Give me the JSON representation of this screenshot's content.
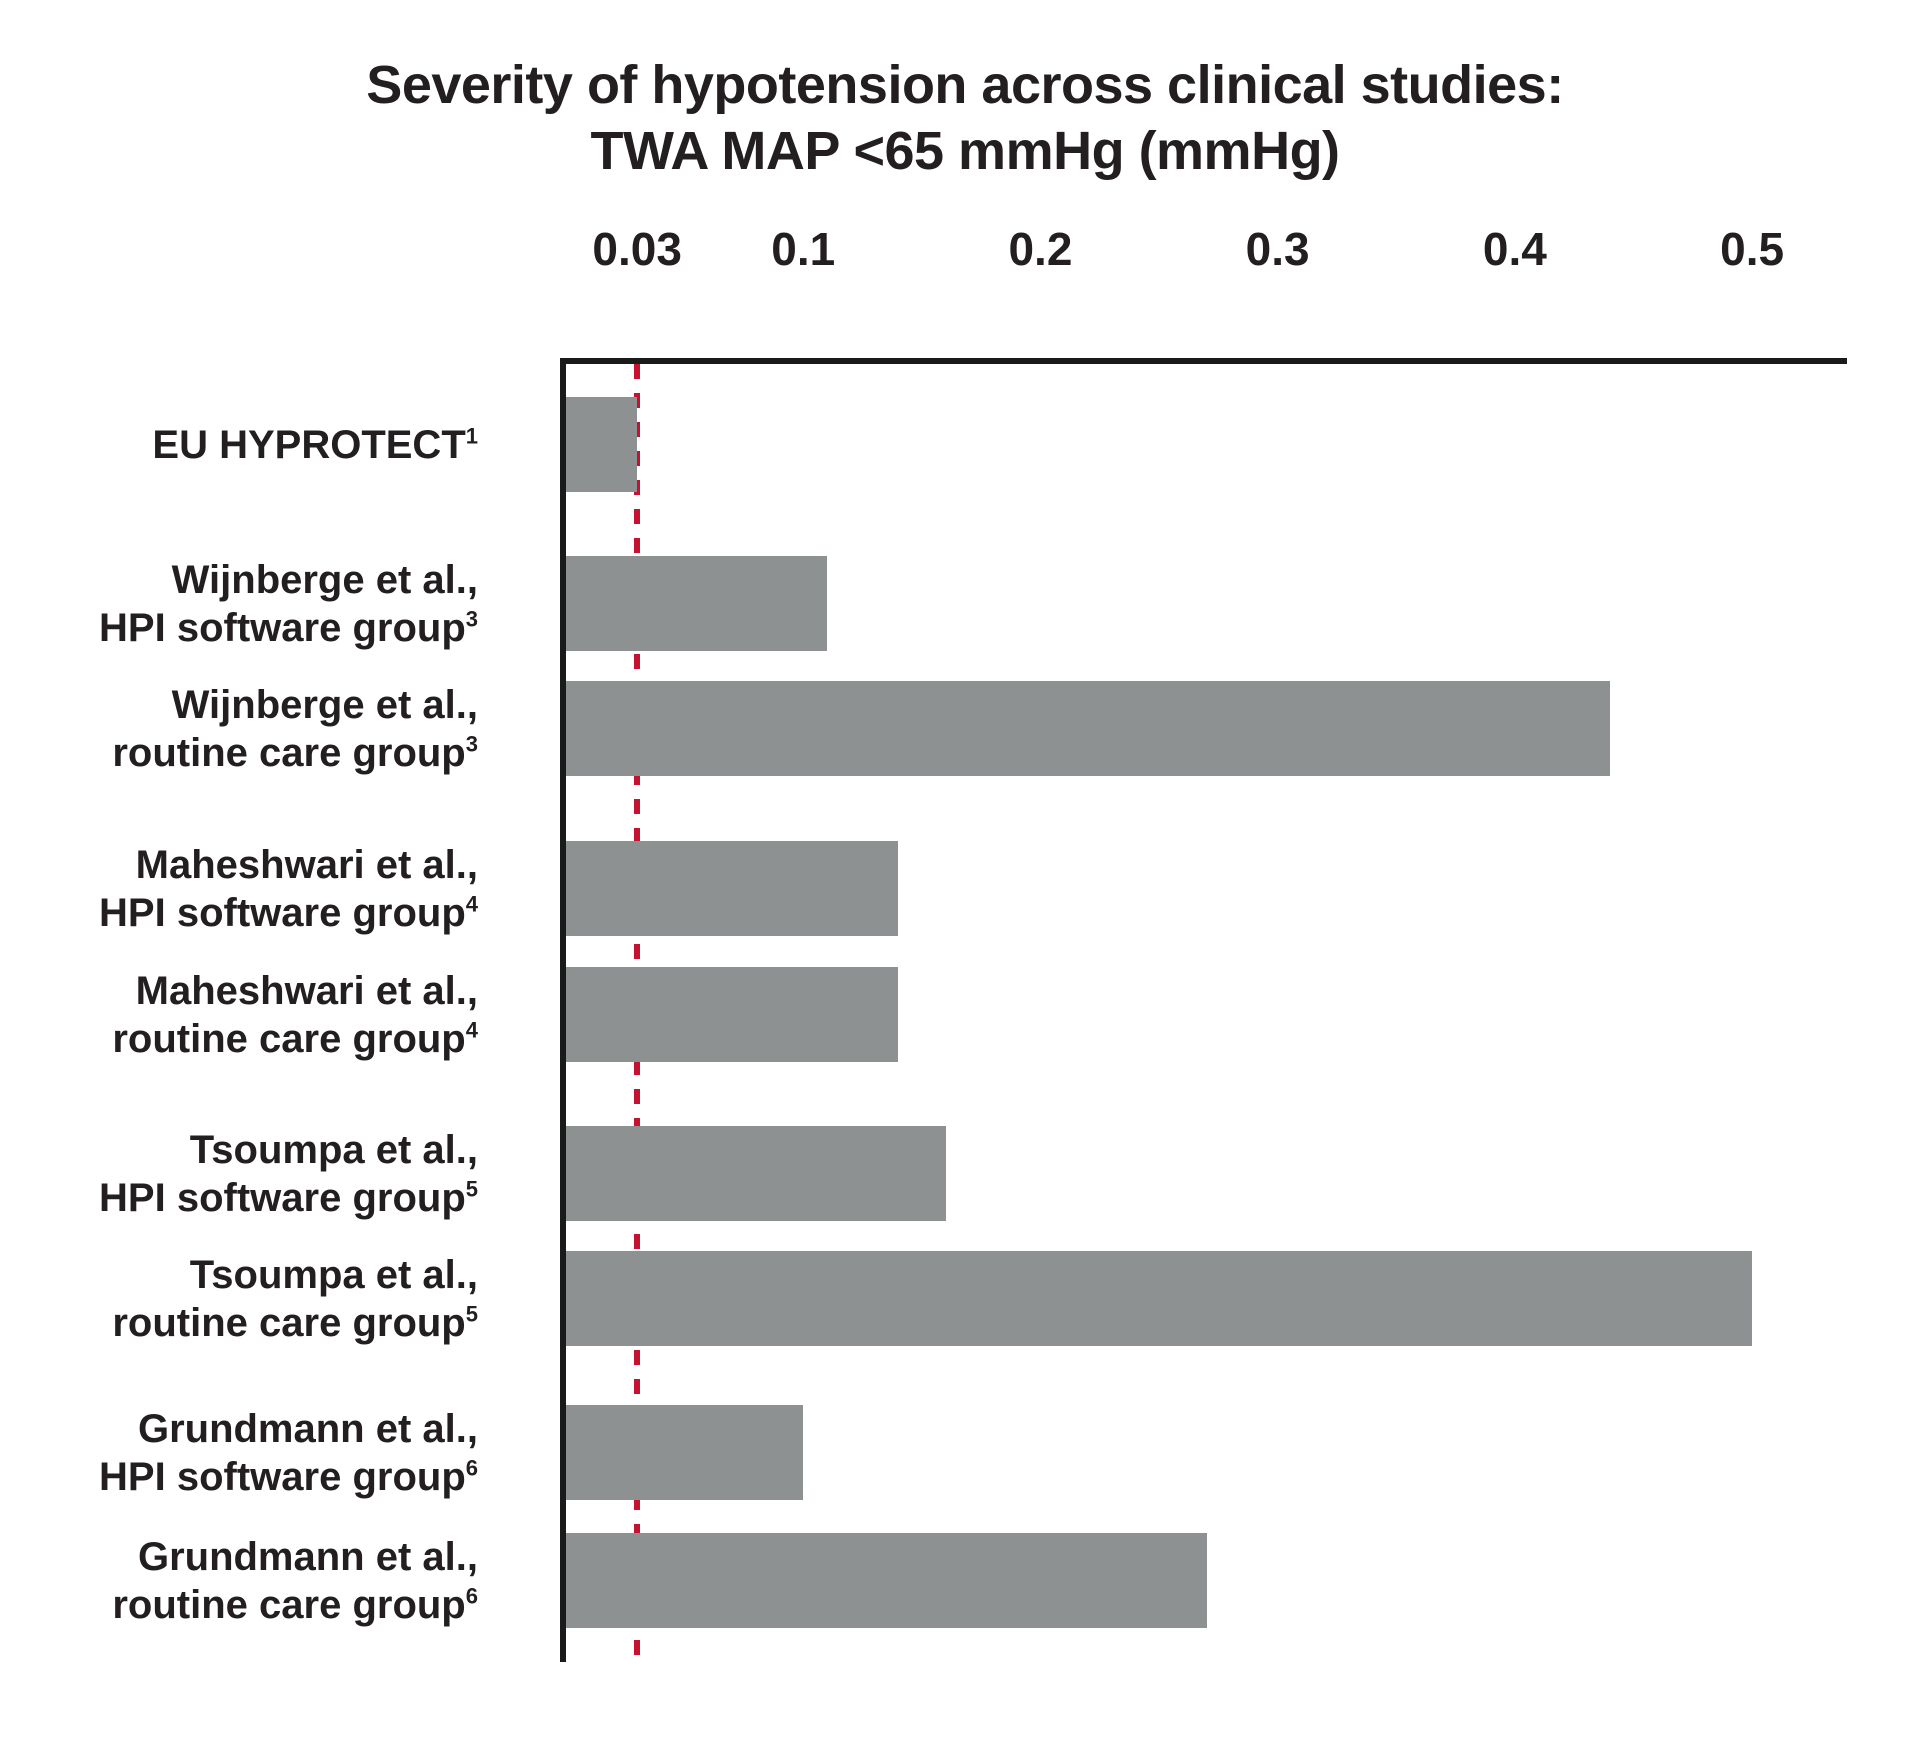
{
  "chart_data": {
    "type": "bar",
    "orientation": "horizontal",
    "title_line1": "Severity of hypotension across clinical studies:",
    "title_line2": "TWA MAP <65 mmHg (mmHg)",
    "categories": [
      {
        "line1": "EU HYPROTECT",
        "line2": "",
        "sup": "1"
      },
      {
        "line1": "Wijnberge et al.,",
        "line2": "HPI software group",
        "sup": "3"
      },
      {
        "line1": "Wijnberge et al.,",
        "line2": "routine care group",
        "sup": "3"
      },
      {
        "line1": "Maheshwari et al.,",
        "line2": "HPI software group",
        "sup": "4"
      },
      {
        "line1": "Maheshwari et al.,",
        "line2": "routine care group",
        "sup": "4"
      },
      {
        "line1": "Tsoumpa et al.,",
        "line2": "HPI software group",
        "sup": "5"
      },
      {
        "line1": "Tsoumpa et al.,",
        "line2": "routine care group",
        "sup": "5"
      },
      {
        "line1": "Grundmann et al.,",
        "line2": "HPI software group",
        "sup": "6"
      },
      {
        "line1": "Grundmann et al.,",
        "line2": "routine care group",
        "sup": "6"
      }
    ],
    "values": [
      0.03,
      0.11,
      0.44,
      0.14,
      0.14,
      0.16,
      0.5,
      0.1,
      0.27
    ],
    "x_tick_labels": [
      "0.03",
      "0.1",
      "0.2",
      "0.3",
      "0.4",
      "0.5"
    ],
    "xlim": [
      0,
      0.54
    ],
    "xlabel": "",
    "ylabel": "",
    "grid": false,
    "legend": false,
    "reference_line": {
      "value": 0.03,
      "style": "dashed",
      "color": "#C41230"
    },
    "bar_color": "#8E9192",
    "axis_color": "#1A1A1A",
    "text_color": "#231F20"
  }
}
